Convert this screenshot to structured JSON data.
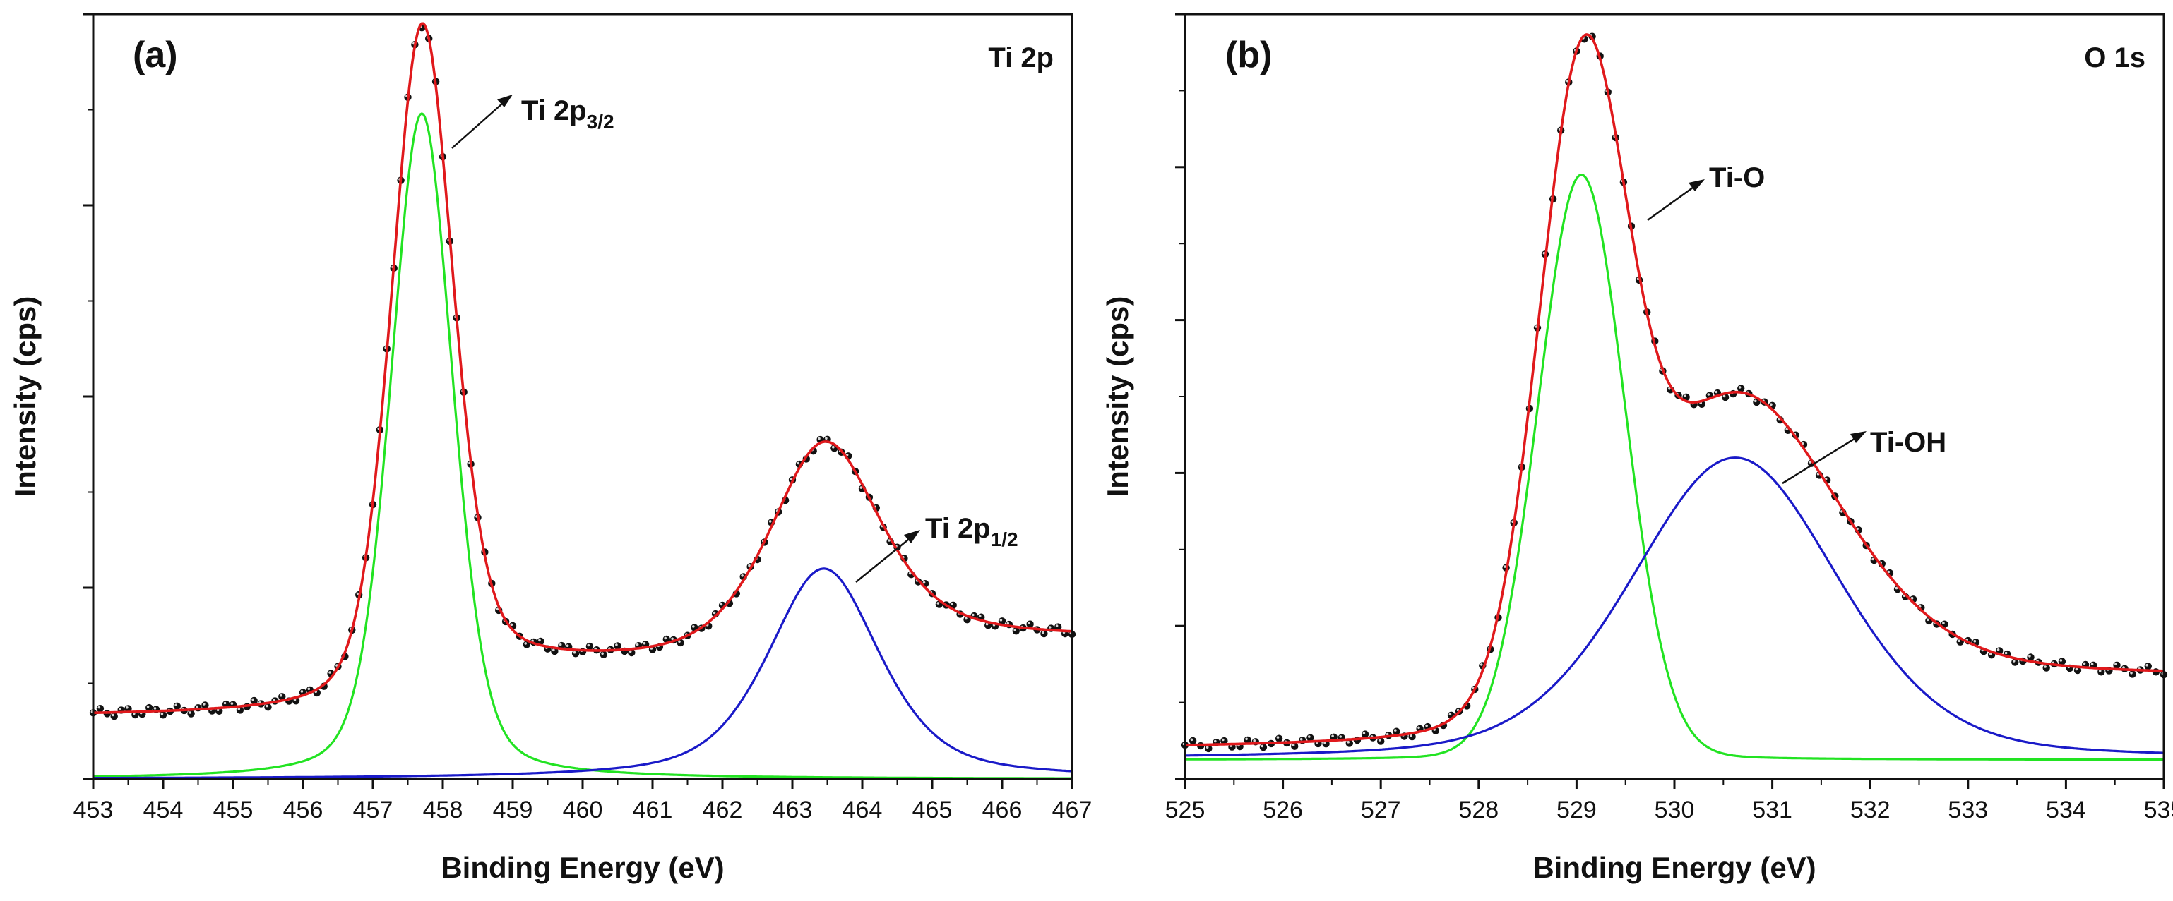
{
  "figure_description": "XPS spectra of Ti 2p and O 1s regions with peak deconvolution",
  "panels": [
    {
      "panel_label": "(a)",
      "region": "Ti 2p",
      "xlabel": "Binding Energy (eV)",
      "ylabel": "Intensity (cps)",
      "annotations": {
        "peak1_main": "Ti 2p",
        "peak1_sub": "3/2",
        "peak2_main": "Ti 2p",
        "peak2_sub": "1/2"
      }
    },
    {
      "panel_label": "(b)",
      "region": "O 1s",
      "xlabel": "Binding Energy (eV)",
      "ylabel": "Intensity (cps)",
      "annotations": {
        "peak1": "Ti-O",
        "peak2": "Ti-OH"
      }
    }
  ],
  "colors": {
    "envelope": "#e0191c",
    "component_1": "#22e322",
    "component_2": "#1a1ac8",
    "data_points": "#111111",
    "axis": "#111111"
  },
  "chart_data": [
    {
      "type": "line",
      "title": "Ti 2p",
      "xlabel": "Binding Energy (eV)",
      "ylabel": "Intensity (cps)",
      "xlim": [
        453,
        467
      ],
      "ylim": [
        0,
        100
      ],
      "xticks": [
        453,
        454,
        455,
        456,
        457,
        458,
        459,
        460,
        461,
        462,
        463,
        464,
        465,
        466,
        467
      ],
      "yticks_unlabeled": [
        0,
        25,
        50,
        75,
        100
      ],
      "y_tick_labels_shown": false,
      "components": [
        {
          "name": "Ti 2p3/2",
          "color": "green",
          "center": 457.7,
          "height": 87,
          "fwhm": 1.05,
          "eta": 0.3
        },
        {
          "name": "Ti 2p1/2",
          "color": "blue",
          "center": 463.45,
          "height": 27.5,
          "fwhm": 1.9,
          "eta": 0.55
        }
      ],
      "background": {
        "type": "shirley",
        "low_value": 8.2,
        "high_value": 18.2
      },
      "series": [
        {
          "name": "Experimental data",
          "style": "markers",
          "x_start": 453,
          "x_end": 467,
          "step": 0.1
        },
        {
          "name": "Fitted envelope",
          "style": "line",
          "color": "red"
        },
        {
          "name": "Ti 2p3/2 component",
          "style": "line",
          "color": "green"
        },
        {
          "name": "Ti 2p1/2 component",
          "style": "line",
          "color": "blue"
        }
      ],
      "peaks": [
        {
          "label": "Ti 2p3/2",
          "x": 457.7,
          "y_max": 98
        },
        {
          "label": "Ti 2p1/2",
          "x": 463.45,
          "y_max": 41.5
        }
      ]
    },
    {
      "type": "line",
      "title": "O 1s",
      "xlabel": "Binding Energy (eV)",
      "ylabel": "Intensity (cps)",
      "xlim": [
        525,
        535
      ],
      "ylim": [
        0,
        100
      ],
      "xticks": [
        525,
        526,
        527,
        528,
        529,
        530,
        531,
        532,
        533,
        534,
        535
      ],
      "yticks_unlabeled": [
        0,
        20,
        40,
        60,
        80,
        100
      ],
      "y_tick_labels_shown": false,
      "components": [
        {
          "name": "Ti-O",
          "color": "green",
          "center": 529.05,
          "height": 76.5,
          "fwhm": 1.05,
          "eta": 0.05,
          "baseline": 2.5
        },
        {
          "name": "Ti-OH",
          "color": "blue",
          "center": 530.62,
          "height": 39.5,
          "fwhm": 2.5,
          "eta": 0.3,
          "baseline": 2.5
        }
      ],
      "background": {
        "type": "shirley",
        "low_value": 3.8,
        "high_value": 13.2
      },
      "series": [
        {
          "name": "Experimental data",
          "style": "markers",
          "x_start": 525,
          "x_end": 535,
          "step": 0.08
        },
        {
          "name": "Fitted envelope",
          "style": "line",
          "color": "red"
        },
        {
          "name": "Ti-O component",
          "style": "line",
          "color": "green"
        },
        {
          "name": "Ti-OH component",
          "style": "line",
          "color": "blue"
        }
      ],
      "peaks": [
        {
          "label": "Ti-O",
          "x": 529.1,
          "y_max": 99.5
        },
        {
          "label": "Ti-OH",
          "x": 530.6,
          "y_max": 47
        }
      ]
    }
  ]
}
